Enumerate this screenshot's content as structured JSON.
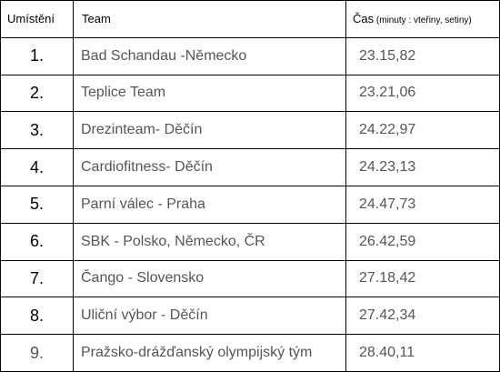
{
  "header": {
    "rank": "Umístění",
    "team": "Team",
    "time_main": "Čas",
    "time_sub": " (minuty : vteřiny, setiny)"
  },
  "rows": [
    {
      "rank": "1.",
      "team": "Bad Schandau -Německo",
      "time": "23.15,82"
    },
    {
      "rank": "2.",
      "team": "Teplice Team",
      "time": "23.21,06"
    },
    {
      "rank": "3.",
      "team": "Drezinteam- Děčín",
      "time": " 24.22,97"
    },
    {
      "rank": "4.",
      "team": "Cardiofitness- Děčín",
      "time": " 24.23,13"
    },
    {
      "rank": "5.",
      "team": "Parní válec - Praha",
      "time": " 24.47,73"
    },
    {
      "rank": "6.",
      "team": "SBK - Polsko, Německo, ČR",
      "time": " 26.42,59"
    },
    {
      "rank": "7.",
      "team": "Čango - Slovensko",
      "time": " 27.18,42"
    },
    {
      "rank": "8.",
      "team": " Uliční výbor - Děčín",
      "time": " 27.42,34"
    },
    {
      "rank": "9.",
      "team": "Pražsko-drážďanský olympijský tým",
      "time": " 28.40,11"
    }
  ]
}
